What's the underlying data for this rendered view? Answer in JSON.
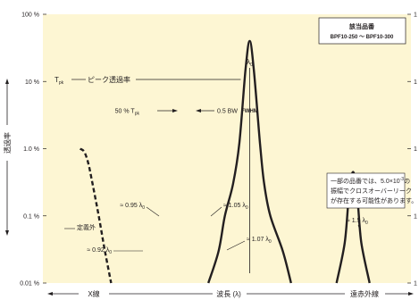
{
  "chart_data": {
    "type": "line",
    "title": "",
    "ylabel": "透過率",
    "xlabel": "波長 (λ)",
    "yscale": "log",
    "ylim": [
      0.01,
      100
    ],
    "yticks": [
      "100 %",
      "10 %",
      "1.0 %",
      "0.1 %",
      "0.01 %"
    ],
    "x_regions": [
      "X線",
      "波長 (λ)",
      "遠赤外線"
    ],
    "grid": false,
    "background": "#fdf6d3",
    "curve_color": "#231f20",
    "legend_box": {
      "title": "該当品番",
      "subtitle": "BPF10-250 〜 BPF10-300"
    },
    "series": [
      {
        "name": "",
        "style": "solid",
        "x": [
          0.8,
          0.85,
          0.88,
          0.92,
          0.95,
          0.98,
          1.0,
          1.02,
          1.05,
          1.07,
          1.1,
          1.16,
          1.2
        ],
        "y": [
          0.01,
          0.03,
          0.1,
          0.3,
          1.2,
          15,
          40,
          15,
          1.2,
          0.3,
          0.1,
          0.03,
          0.01
        ]
      },
      {
        "name": "",
        "style": "dashed",
        "x": [
          0.18,
          0.2,
          0.22,
          0.24,
          0.27,
          0.3,
          0.33
        ],
        "y": [
          1.0,
          0.9,
          0.6,
          0.3,
          0.1,
          0.03,
          0.01
        ]
      },
      {
        "name": "",
        "style": "solid",
        "x": [
          1.42,
          1.46,
          1.48,
          1.5,
          1.52,
          1.54,
          1.58
        ],
        "y": [
          0.01,
          0.04,
          0.2,
          0.45,
          0.2,
          0.04,
          0.01
        ]
      }
    ],
    "annotations": {
      "tpk_sub": "pk",
      "tpk_label": "ピーク透過率",
      "lambda0_sym": "λ",
      "lambda0_sub": "0",
      "fifty_pre": "50 % T",
      "fifty_sub": "pk",
      "fwhm": "FWHM",
      "half_bw": "0.5 BW",
      "l095_pre": "≈ 0.95 λ",
      "l105_pre": "≈ 1.05 λ",
      "l092_pre": "≈ 0.92 λ",
      "l107_pre": "≈ 1.07 λ",
      "l15_pre": "≈ 1.5 λ",
      "teigigai": "定義外",
      "note_lines": [
        "一部の品番では、5.0×10",
        "振幅でクロスオーバーリーク",
        "が存在する可能性があります。"
      ],
      "note_exp": "-3",
      "note_tail": "の"
    },
    "right_marks": [
      "1",
      "1",
      "1",
      "1",
      "1"
    ]
  }
}
